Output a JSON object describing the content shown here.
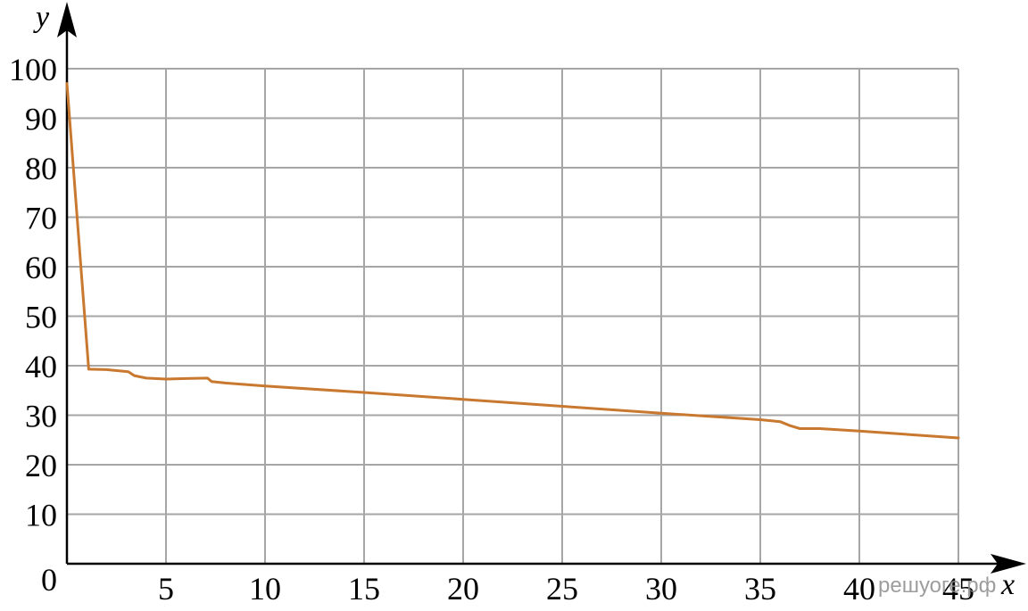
{
  "watermark": "решуоге.рф",
  "colors": {
    "line": "#c8782f",
    "grid": "#a6a6a6",
    "axis": "#000000"
  },
  "chart_data": {
    "type": "line",
    "title": "",
    "xlabel": "x",
    "ylabel": "y",
    "xlim": [
      0,
      45
    ],
    "ylim": [
      0,
      100
    ],
    "grid": true,
    "x_ticks": [
      5,
      10,
      15,
      20,
      25,
      30,
      35,
      40,
      45
    ],
    "y_ticks": [
      0,
      10,
      20,
      30,
      40,
      50,
      60,
      70,
      80,
      90,
      100
    ],
    "series": [
      {
        "points": [
          [
            0,
            97
          ],
          [
            1.1,
            39.3
          ],
          [
            2,
            39.2
          ],
          [
            3.1,
            38.8
          ],
          [
            3.4,
            38.0
          ],
          [
            4,
            37.5
          ],
          [
            5,
            37.3
          ],
          [
            6,
            37.4
          ],
          [
            7.1,
            37.5
          ],
          [
            7.3,
            36.8
          ],
          [
            8,
            36.5
          ],
          [
            10,
            35.9
          ],
          [
            15,
            34.6
          ],
          [
            20,
            33.2
          ],
          [
            25,
            31.8
          ],
          [
            30,
            30.4
          ],
          [
            35,
            29.1
          ],
          [
            36,
            28.7
          ],
          [
            36.5,
            27.9
          ],
          [
            37,
            27.3
          ],
          [
            38,
            27.3
          ],
          [
            40,
            26.8
          ],
          [
            45,
            25.4
          ]
        ]
      }
    ]
  }
}
